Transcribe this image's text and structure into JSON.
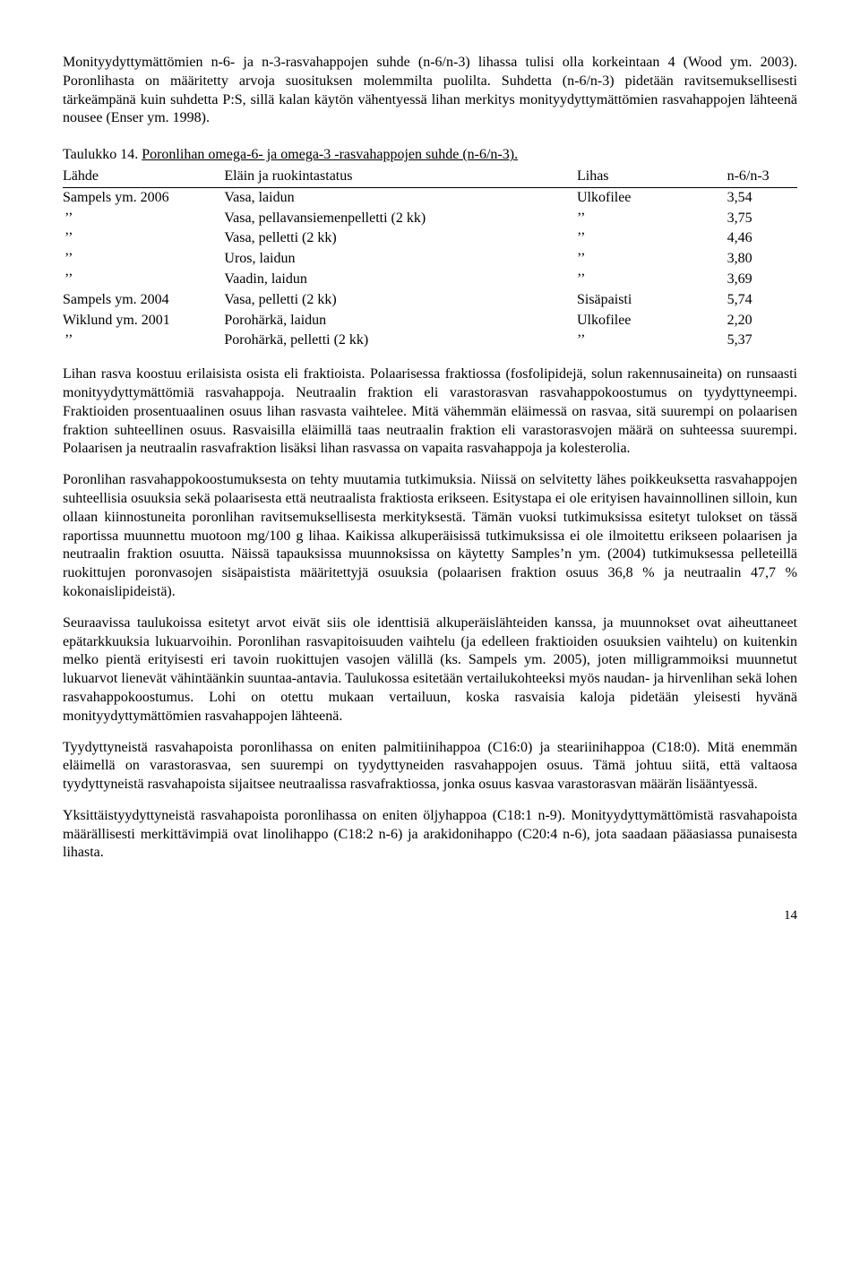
{
  "para1": "Monityydyttymättömien n-6- ja n-3-rasvahappojen suhde (n-6/n-3) lihassa tulisi olla korkeintaan 4 (Wood ym. 2003). Poronlihasta on määritetty arvoja suosituksen molemmilta puolilta. Suhdetta (n-6/n-3) pidetään ravitsemuksellisesti tärkeämpänä kuin suhdetta P:S, sillä kalan käytön vähentyessä lihan merkitys monityydyttymättömien rasvahappojen lähteenä nousee (Enser ym. 1998).",
  "table": {
    "caption_plain": "Taulukko 14. ",
    "caption_underline": "Poronlihan omega-6- ja omega-3 -rasvahappojen suhde (n-6/n-3).",
    "headers": {
      "source": "Lähde",
      "status": "Eläin ja ruokintastatus",
      "lihas": "Lihas",
      "ratio": "n-6/n-3"
    },
    "rows": [
      {
        "source": "Sampels ym. 2006",
        "status": "Vasa, laidun",
        "lihas": "Ulkofilee",
        "ratio": "3,54"
      },
      {
        "source": "’’",
        "status": "Vasa, pellavansiemenpelletti (2 kk)",
        "lihas": "’’",
        "ratio": "3,75"
      },
      {
        "source": "’’",
        "status": "Vasa, pelletti (2 kk)",
        "lihas": "’’",
        "ratio": "4,46"
      },
      {
        "source": "’’",
        "status": "Uros, laidun",
        "lihas": "’’",
        "ratio": "3,80"
      },
      {
        "source": "’’",
        "status": "Vaadin, laidun",
        "lihas": "’’",
        "ratio": "3,69"
      },
      {
        "source": "Sampels ym. 2004",
        "status": "Vasa, pelletti (2 kk)",
        "lihas": "Sisäpaisti",
        "ratio": "5,74"
      },
      {
        "source": "Wiklund ym. 2001",
        "status": "Porohärkä, laidun",
        "lihas": "Ulkofilee",
        "ratio": "2,20"
      },
      {
        "source": "’’",
        "status": "Porohärkä, pelletti (2 kk)",
        "lihas": "’’",
        "ratio": "5,37"
      }
    ]
  },
  "para2": "Lihan rasva koostuu erilaisista osista eli fraktioista. Polaarisessa fraktiossa (fosfolipidejä, solun rakennusaineita) on runsaasti monityydyttymättömiä rasvahappoja. Neutraalin fraktion eli varastorasvan rasvahappokoostumus on tyydyttyneempi. Fraktioiden prosentuaalinen osuus lihan rasvasta vaihtelee. Mitä vähemmän eläimessä on rasvaa, sitä suurempi on polaarisen fraktion suhteellinen osuus. Rasvaisilla eläimillä taas neutraalin fraktion eli varastorasvojen määrä on suhteessa suurempi. Polaarisen ja neutraalin rasvafraktion lisäksi lihan rasvassa on vapaita rasvahappoja ja kolesterolia.",
  "para3": "Poronlihan rasvahappokoostumuksesta on tehty muutamia tutkimuksia. Niissä on selvitetty lähes poikkeuksetta rasvahappojen suhteellisia osuuksia sekä polaarisesta että neutraalista fraktiosta erikseen. Esitystapa ei ole erityisen havainnollinen silloin, kun ollaan kiinnostuneita poronlihan ravitsemuksellisesta merkityksestä. Tämän vuoksi tutkimuksissa esitetyt tulokset on tässä raportissa muunnettu muotoon mg/100 g lihaa. Kaikissa alkuperäisissä tutkimuksissa ei ole ilmoitettu erikseen polaarisen ja neutraalin fraktion osuutta. Näissä tapauksissa muunnoksissa on käytetty Samples’n ym. (2004) tutkimuksessa pelleteillä ruokittujen poronvasojen sisäpaistista määritettyjä osuuksia (polaarisen fraktion osuus 36,8 % ja neutraalin 47,7 % kokonaislipideistä).",
  "para4": "Seuraavissa taulukoissa esitetyt arvot eivät siis ole identtisiä alkuperäislähteiden kanssa, ja muunnokset ovat aiheuttaneet epätarkkuuksia lukuarvoihin. Poronlihan rasvapitoisuuden vaihtelu (ja edelleen fraktioiden osuuksien vaihtelu) on kuitenkin melko pientä erityisesti eri tavoin ruokittujen vasojen välillä (ks. Sampels ym. 2005), joten milligrammoiksi muunnetut lukuarvot lienevät vähintäänkin suuntaa-antavia. Taulukossa esitetään vertailukohteeksi myös naudan- ja hirvenlihan sekä lohen rasvahappokoostumus. Lohi on otettu mukaan vertailuun, koska rasvaisia kaloja pidetään yleisesti hyvänä monityydyttymättömien rasvahappojen lähteenä.",
  "para5": "Tyydyttyneistä rasvahapoista poronlihassa on eniten palmitiinihappoa (C16:0) ja steariinihappoa (C18:0). Mitä enemmän eläimellä on varastorasvaa, sen suurempi on tyydyttyneiden rasvahappojen osuus. Tämä johtuu siitä, että valtaosa tyydyttyneistä rasvahapoista sijaitsee neutraalissa rasvafraktiossa, jonka osuus kasvaa varastorasvan määrän lisääntyessä.",
  "para6": "Yksittäistyydyttyneistä rasvahapoista poronlihassa on eniten öljyhappoa (C18:1 n-9). Monityydyttymättömistä rasvahapoista määrällisesti merkittävimpiä ovat linolihappo (C18:2 n-6) ja arakidonihappo (C20:4 n-6), jota saadaan pääasiassa punaisesta lihasta.",
  "page_number": "14"
}
